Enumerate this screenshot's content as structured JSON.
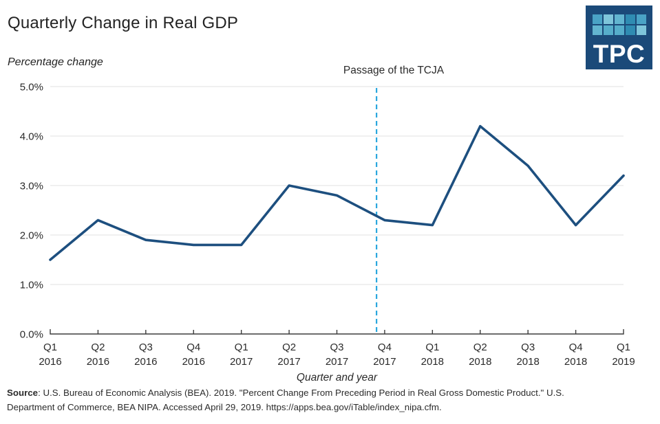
{
  "header": {
    "title": "Quarterly Change in Real GDP"
  },
  "logo": {
    "text": "TPC",
    "bg_color": "#1b4a79",
    "square_colors": [
      "#4aa3c6",
      "#7ec5da",
      "#62b5d0",
      "#2f8cb2",
      "#4aa3c6",
      "#62b5d0",
      "#56aecb",
      "#56aecb",
      "#2f8cb2",
      "#7ec5da"
    ]
  },
  "chart_data": {
    "type": "line",
    "title": "Quarterly Change in Real GDP",
    "ylabel": "Percentage change",
    "xlabel": "Quarter and year",
    "unit": "%",
    "categories": [
      "Q1 2016",
      "Q2 2016",
      "Q3 2016",
      "Q4 2016",
      "Q1 2017",
      "Q2 2017",
      "Q3 2017",
      "Q4 2017",
      "Q1 2018",
      "Q2 2018",
      "Q3 2018",
      "Q4 2018",
      "Q1 2019"
    ],
    "x_labels": [
      [
        "Q1",
        "2016"
      ],
      [
        "Q2",
        "2016"
      ],
      [
        "Q3",
        "2016"
      ],
      [
        "Q4",
        "2016"
      ],
      [
        "Q1",
        "2017"
      ],
      [
        "Q2",
        "2017"
      ],
      [
        "Q3",
        "2017"
      ],
      [
        "Q4",
        "2017"
      ],
      [
        "Q1",
        "2018"
      ],
      [
        "Q2",
        "2018"
      ],
      [
        "Q3",
        "2018"
      ],
      [
        "Q4",
        "2018"
      ],
      [
        "Q1",
        "2019"
      ]
    ],
    "values": [
      1.5,
      2.3,
      1.9,
      1.8,
      1.8,
      3.0,
      2.8,
      2.3,
      2.2,
      4.2,
      3.4,
      2.2,
      3.2
    ],
    "ylim": [
      0,
      5
    ],
    "yticks": [
      {
        "value": 0,
        "label": "0.0%"
      },
      {
        "value": 1,
        "label": "1.0%"
      },
      {
        "value": 2,
        "label": "2.0%"
      },
      {
        "value": 3,
        "label": "3.0%"
      },
      {
        "value": 4,
        "label": "4.0%"
      },
      {
        "value": 5,
        "label": "5.0%"
      }
    ],
    "grid": true,
    "legend_position": "none",
    "line_color": "#1d4f7f",
    "grid_color": "#e7e7e7",
    "axis_color": "#3b3b3b",
    "tick_label_color": "#2a2a2a",
    "annotation": {
      "label": "Passage of the TCJA",
      "x_index": 6.83,
      "style": "dashed",
      "color": "#2aa7de"
    }
  },
  "footer": {
    "source_label": "Source",
    "source_line1_rest": ": U.S. Bureau of Economic Analysis (BEA). 2019. \"Percent Change From Preceding Period in Real Gross Domestic Product.\" U.S.",
    "source_line2": "Department of Commerce, BEA NIPA. Accessed April 29, 2019. https://apps.bea.gov/iTable/index_nipa.cfm."
  }
}
